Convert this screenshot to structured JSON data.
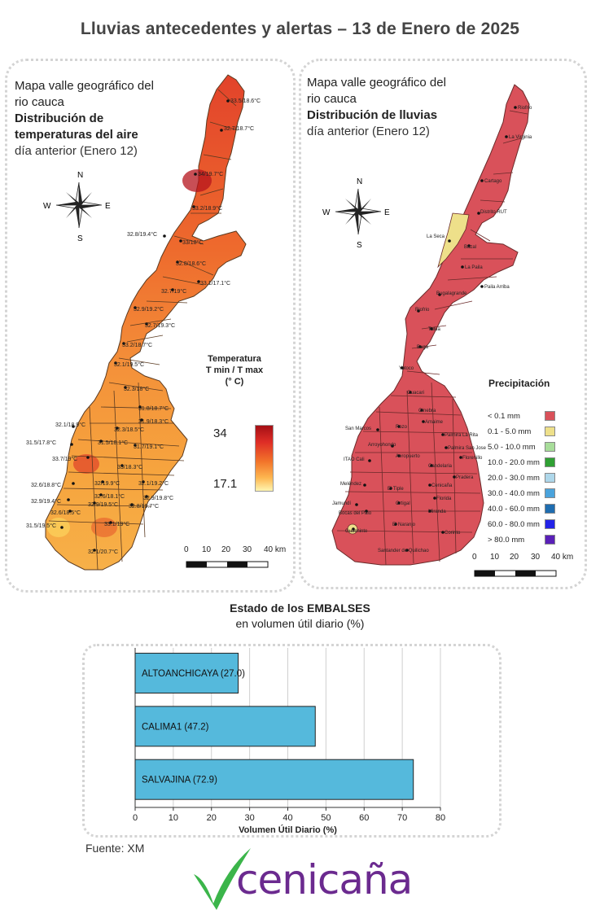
{
  "page": {
    "title": "Lluvias antecedentes y alertas – 13 de Enero de 2025",
    "source": "Fuente: XM",
    "logo_text": "cenicaña"
  },
  "temp_map": {
    "title_line1": "Mapa valle geográfico del",
    "title_line2": "rio cauca",
    "title_line3": "Distribución de",
    "title_line4": "temperaturas del aire",
    "subtitle": "día anterior (Enero 12)",
    "legend_title_1": "Temperatura",
    "legend_title_2": "T min / T max",
    "legend_title_3": "(° C)",
    "legend_max": "34",
    "legend_min": "17.1",
    "scale_labels": [
      "0",
      "10",
      "20",
      "30",
      "40 km"
    ],
    "compass": {
      "n": "N",
      "s": "S",
      "e": "E",
      "w": "W"
    },
    "station_labels": [
      "33.5/18.6°C",
      "32.7/18.7°C",
      "34/19.7°C",
      "33.2/18.9°C",
      "32.8/19.4°C",
      "33/18°C",
      "32.8/18.6°C",
      "33.1/17.1°C",
      "32.7/19°C",
      "32.9/19.2°C",
      "32.7/19.3°C",
      "33.2/18.7°C",
      "32.1/19.5°C",
      "32.3/18°C",
      "31.8/18.7°C",
      "31.9/18.3°C",
      "32.1/18.9°C",
      "32.3/18.5°C",
      "31.5/17.8°C",
      "31.5/18.1°C",
      "31.7/19.1°C",
      "33.7/19°C",
      "33/18.3°C",
      "32.6/18.8°C",
      "32/19.9°C",
      "32.1/19.2°C",
      "32.9/19.4°C",
      "32.6/18.1°C",
      "32.9/19.8°C",
      "32.6/18.5°C",
      "32.9/19.5°C",
      "32.8/19.7°C",
      "31.5/19.5°C",
      "33.1/19°C",
      "32.1/20.7°C"
    ]
  },
  "rain_map": {
    "title_line1": "Mapa valle geográfico del",
    "title_line2": "rio cauca",
    "title_line3": "Distribución de lluvias",
    "subtitle": "día anterior (Enero  12)",
    "scale_labels": [
      "0",
      "10",
      "20",
      "30",
      "40 km"
    ],
    "compass": {
      "n": "N",
      "s": "S",
      "e": "E",
      "w": "W"
    },
    "legend_title": "Precipitación",
    "legend": [
      {
        "label": "< 0.1 mm",
        "color": "#d9515a"
      },
      {
        "label": "0.1 - 5.0 mm",
        "color": "#eee08a"
      },
      {
        "label": "5.0 - 10.0 mm",
        "color": "#a8dd9a"
      },
      {
        "label": "10.0 - 20.0 mm",
        "color": "#2fa033"
      },
      {
        "label": "20.0 - 30.0 mm",
        "color": "#aed7ea"
      },
      {
        "label": "30.0 - 40.0 mm",
        "color": "#4aa3dc"
      },
      {
        "label": "40.0 - 60.0 mm",
        "color": "#1f6db0"
      },
      {
        "label": "60.0 - 80.0 mm",
        "color": "#2323e8"
      },
      {
        "label": "> 80.0 mm",
        "color": "#5a20b8"
      }
    ],
    "station_labels": [
      "Riofrio",
      "La Virginia",
      "Cartago",
      "Distrito RUT",
      "La Seca",
      "Bazal",
      "La Paila",
      "Paila Arriba",
      "Bugalagrande",
      "Riofrio",
      "Tulua",
      "Buga",
      "Yotoco",
      "Guacari",
      "Ginebra",
      "San Marcos",
      "Rozo",
      "Amaime",
      "Palmira La Rita",
      "Arroyohondo",
      "Palmira San Jose",
      "Aeropuerto",
      "Florenillo",
      "ITAO Cali",
      "Candelaria",
      "Pradera",
      "Meléndez",
      "El Tiple",
      "Cenicaña",
      "Jamundí",
      "Bocas del Palo",
      "Ortigal",
      "Florida",
      "Miranda",
      "El Naranjo",
      "Guachinte",
      "Corinto",
      "Santander de Quilichao"
    ]
  },
  "chart_data": {
    "type": "bar",
    "orientation": "horizontal",
    "title": "Estado de los EMBALSES",
    "subtitle": "en volumen útil diario (%)",
    "xlabel": "Volumen Útil Diario (%)",
    "xlim": [
      0,
      80
    ],
    "xticks": [
      "0",
      "10",
      "20",
      "30",
      "40",
      "50",
      "60",
      "70",
      "80"
    ],
    "categories": [
      "ALTOANCHICAYA (27.0)",
      "CALIMA1 (47.2)",
      "SALVAJINA (72.9)"
    ],
    "values": [
      27.0,
      47.2,
      72.9
    ],
    "bar_color": "#55b9dc",
    "grid": true
  }
}
